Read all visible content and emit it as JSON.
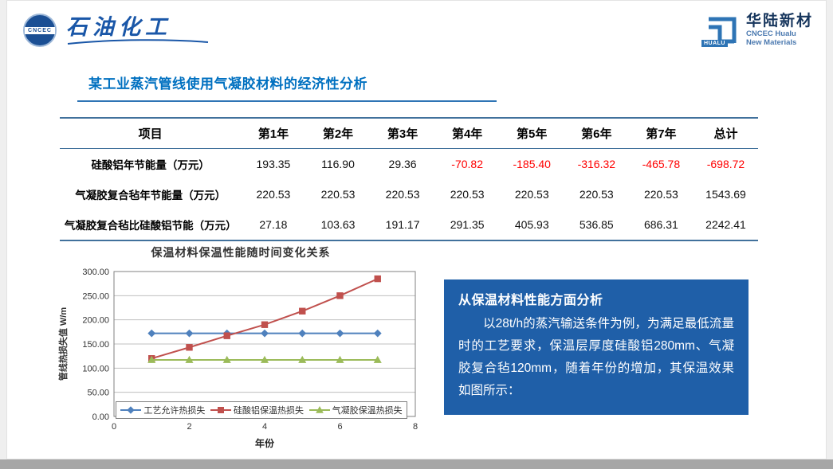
{
  "header": {
    "left_logo": {
      "badge": "CNCEC",
      "brand": "石油化工"
    },
    "right_logo": {
      "name": "华陆新材",
      "sub1": "CNCEC Hualu",
      "sub2": "New Materials",
      "badge": "HUALU"
    }
  },
  "title": "某工业蒸汽管线使用气凝胶材料的经济性分析",
  "table": {
    "headers": [
      "项目",
      "第1年",
      "第2年",
      "第3年",
      "第4年",
      "第5年",
      "第6年",
      "第7年",
      "总计"
    ],
    "rows": [
      {
        "label": "硅酸铝年节能量（万元）",
        "values": [
          "193.35",
          "116.90",
          "29.36",
          "-70.82",
          "-185.40",
          "-316.32",
          "-465.78",
          "-698.72"
        ]
      },
      {
        "label": "气凝胶复合毡年节能量（万元）",
        "values": [
          "220.53",
          "220.53",
          "220.53",
          "220.53",
          "220.53",
          "220.53",
          "220.53",
          "1543.69"
        ]
      },
      {
        "label": "气凝胶复合毡比硅酸铝节能（万元）",
        "values": [
          "27.18",
          "103.63",
          "191.17",
          "291.35",
          "405.93",
          "536.85",
          "686.31",
          "2242.41"
        ]
      }
    ]
  },
  "chart_data": {
    "type": "line",
    "title": "保温材料保温性能随时间变化关系",
    "xlabel": "年份",
    "ylabel": "管线热损失值 W/m",
    "xlim": [
      0,
      8
    ],
    "ylim": [
      0,
      300
    ],
    "x_ticks": [
      0,
      2,
      4,
      6,
      8
    ],
    "y_ticks": [
      "0.00",
      "50.00",
      "100.00",
      "150.00",
      "200.00",
      "250.00",
      "300.00"
    ],
    "grid": true,
    "legend_position": "bottom-inside",
    "x": [
      1,
      2,
      3,
      4,
      5,
      6,
      7
    ],
    "series": [
      {
        "name": "工艺允许热损失",
        "color": "#4F81BD",
        "marker": "diamond",
        "values": [
          172,
          172,
          172,
          172,
          172,
          172,
          172
        ]
      },
      {
        "name": "硅酸铝保温热损失",
        "color": "#C0504D",
        "marker": "square",
        "values": [
          120,
          143,
          167,
          190,
          218,
          250,
          285
        ]
      },
      {
        "name": "气凝胶保温热损失",
        "color": "#9BBB59",
        "marker": "triangle",
        "values": [
          117,
          117,
          117,
          117,
          117,
          117,
          117
        ]
      }
    ]
  },
  "info_box": {
    "title": "从保温材料性能方面分析",
    "body": "以28t/h的蒸汽输送条件为例，为满足最低流量时的工艺要求，保温层厚度硅酸铝280mm、气凝胶复合毡120mm，随着年份的增加，其保温效果如图所示："
  },
  "colors": {
    "accent_blue": "#0070C0",
    "table_line": "#41719C",
    "negative_value": "#FF0000",
    "info_box_bg": "#1F5FA8",
    "logo_blue": "#1A57A8",
    "bottom_bar": "#A6A6A6"
  }
}
